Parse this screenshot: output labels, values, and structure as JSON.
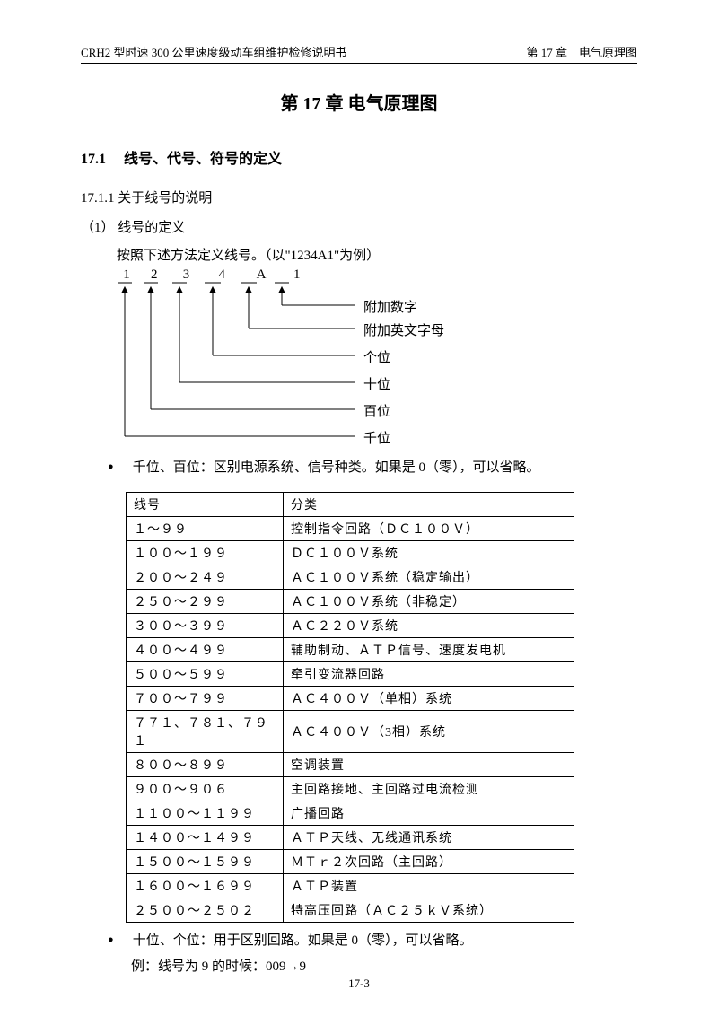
{
  "header": {
    "left": "CRH2 型时速 300 公里速度级动车组维护检修说明书",
    "right": "第 17 章　电气原理图"
  },
  "chapter_title": "第 17 章 电气原理图",
  "section": {
    "num": "17.1",
    "title": "线号、代号、符号的定义"
  },
  "subsection": "17.1.1 关于线号的说明",
  "item1": {
    "label": "（1） 线号的定义",
    "desc": "按照下述方法定义线号。（以\"1234A1\"为例）"
  },
  "digits": {
    "d1": "1",
    "d2": "2",
    "d3": "3",
    "d4": "4",
    "d5": "A",
    "d6": "1"
  },
  "diagram_labels": {
    "l1": "附加数字",
    "l2": "附加英文字母",
    "l3": "个位",
    "l4": "十位",
    "l5": "百位",
    "l6": "千位"
  },
  "bullet1": "千位、百位：区别电源系统、信号种类。如果是 0（零），可以省略。",
  "table": {
    "headers": {
      "col1": "线号",
      "col2": "分类"
    },
    "rows": [
      {
        "num": "１～９９",
        "cat": "控制指令回路（ＤＣ１００Ｖ）"
      },
      {
        "num": "１００～１９９",
        "cat": "ＤＣ１００Ｖ系统"
      },
      {
        "num": "２００～２４９",
        "cat": "ＡＣ１００Ｖ系统（稳定输出）"
      },
      {
        "num": "２５０～２９９",
        "cat": "ＡＣ１００Ｖ系统（非稳定）"
      },
      {
        "num": "３００～３９９",
        "cat": "ＡＣ２２０Ｖ系统"
      },
      {
        "num": "４００～４９９",
        "cat": "辅助制动、ＡＴＰ信号、速度发电机"
      },
      {
        "num": "５００～５９９",
        "cat": "牵引变流器回路"
      },
      {
        "num": "７００～７９９",
        "cat": "ＡＣ４００Ｖ（单相）系统"
      },
      {
        "num": "７７１、７８１、７９１",
        "cat": "ＡＣ４００Ｖ（3相）系统"
      },
      {
        "num": "８００～８９９",
        "cat": "空调装置"
      },
      {
        "num": "９００～９０６",
        "cat": "主回路接地、主回路过电流检测"
      },
      {
        "num": "１１００～１１９９",
        "cat": "广播回路"
      },
      {
        "num": "１４００～１４９９",
        "cat": "ＡＴＰ天线、无线通讯系统"
      },
      {
        "num": "１５００～１５９９",
        "cat": "ＭＴｒ２次回路（主回路）"
      },
      {
        "num": "１６００～１６９９",
        "cat": "ＡＴＰ装置"
      },
      {
        "num": "２５００～２５０２",
        "cat": "特高压回路（ＡＣ２５ｋＶ系统）"
      }
    ]
  },
  "bullet2": "十位、个位：用于区别回路。如果是 0（零），可以省略。",
  "example": "例：线号为 9 的时候：009→9",
  "page_num": "17-3",
  "colors": {
    "text": "#000000",
    "bg": "#ffffff",
    "line": "#000000"
  }
}
